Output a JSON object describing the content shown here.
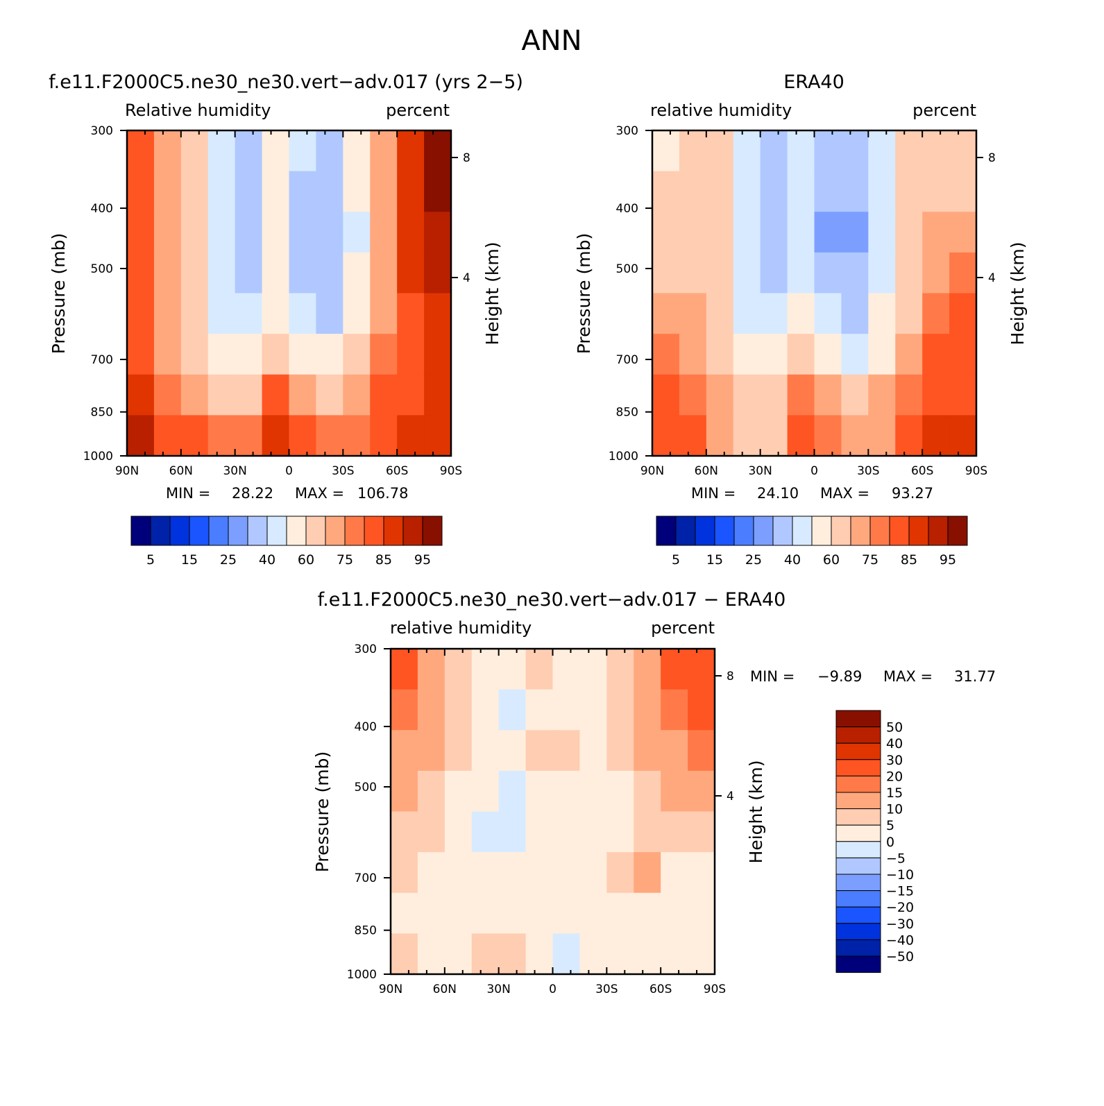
{
  "figure": {
    "title": "ANN",
    "colors": {
      "rh_scale": [
        "#00007a",
        "#0022a8",
        "#0033dd",
        "#1a55ff",
        "#4a7dff",
        "#7c9fff",
        "#b0c8ff",
        "#d8eaff",
        "#ffeedd",
        "#ffcdb2",
        "#ffa87e",
        "#ff7a48",
        "#ff5522",
        "#e03500",
        "#b82000",
        "#881000"
      ],
      "diff_scale": [
        "#00007a",
        "#0022a8",
        "#0033dd",
        "#1a55ff",
        "#4a7dff",
        "#7c9fff",
        "#b0c8ff",
        "#d8eaff",
        "#ffeedd",
        "#ffcdb2",
        "#ffa87e",
        "#ff7a48",
        "#ff5522",
        "#e03500",
        "#b82000",
        "#881000"
      ]
    }
  },
  "chart_data": [
    {
      "type": "heatmap",
      "title": "f.e11.F2000C5.ne30_ne30.vert−adv.017 (yrs 2−5)",
      "subtitle_left": "Relative humidity",
      "subtitle_right": "percent",
      "ylabel": "Pressure (mb)",
      "y2label": "Height (km)",
      "x": [
        "90N",
        "60N",
        "30N",
        "0",
        "30S",
        "60S",
        "90S"
      ],
      "x_values": [
        90,
        60,
        30,
        0,
        -30,
        -60,
        -90
      ],
      "y": [
        "300",
        "400",
        "500",
        "700",
        "850",
        "1000"
      ],
      "y_values": [
        300,
        400,
        500,
        700,
        850,
        1000
      ],
      "y2_ticks": [
        "8",
        "4"
      ],
      "min_label": "MIN =",
      "min": "28.22",
      "max_label": "MAX =",
      "max": "106.78",
      "colorbar_ticks": [
        "5",
        "15",
        "25",
        "40",
        "60",
        "75",
        "85",
        "95"
      ],
      "colorbar_levels": [
        5,
        10,
        15,
        20,
        25,
        30,
        40,
        50,
        60,
        70,
        75,
        80,
        85,
        90,
        95
      ],
      "z": [
        [
          82,
          72,
          62,
          44,
          38,
          52,
          40,
          38,
          52,
          72,
          88,
          98
        ],
        [
          82,
          74,
          62,
          42,
          38,
          50,
          36,
          34,
          50,
          72,
          88,
          96
        ],
        [
          80,
          74,
          62,
          42,
          36,
          50,
          36,
          32,
          48,
          72,
          86,
          92
        ],
        [
          80,
          72,
          62,
          44,
          38,
          54,
          38,
          34,
          50,
          72,
          86,
          90
        ],
        [
          80,
          72,
          62,
          48,
          42,
          58,
          42,
          38,
          52,
          74,
          84,
          88
        ],
        [
          82,
          74,
          66,
          56,
          52,
          66,
          54,
          50,
          62,
          78,
          82,
          86
        ],
        [
          86,
          78,
          72,
          68,
          66,
          80,
          72,
          68,
          70,
          80,
          84,
          86
        ],
        [
          92,
          84,
          80,
          76,
          76,
          88,
          80,
          76,
          78,
          84,
          86,
          88
        ]
      ]
    },
    {
      "type": "heatmap",
      "title": "ERA40",
      "subtitle_left": "relative humidity",
      "subtitle_right": "percent",
      "ylabel": "Pressure (mb)",
      "y2label": "Height (km)",
      "x": [
        "90N",
        "60N",
        "30N",
        "0",
        "30S",
        "60S",
        "90S"
      ],
      "x_values": [
        90,
        60,
        30,
        0,
        -30,
        -60,
        -90
      ],
      "y": [
        "300",
        "400",
        "500",
        "700",
        "850",
        "1000"
      ],
      "y_values": [
        300,
        400,
        500,
        700,
        850,
        1000
      ],
      "y2_ticks": [
        "8",
        "4"
      ],
      "min_label": "MIN =",
      "min": "24.10",
      "max_label": "MAX =",
      "max": "93.27",
      "colorbar_ticks": [
        "5",
        "15",
        "25",
        "40",
        "60",
        "75",
        "85",
        "95"
      ],
      "colorbar_levels": [
        5,
        10,
        15,
        20,
        25,
        30,
        40,
        50,
        60,
        70,
        75,
        80,
        85,
        90,
        95
      ],
      "z": [
        [
          58,
          62,
          60,
          42,
          38,
          42,
          34,
          34,
          44,
          60,
          62,
          62
        ],
        [
          62,
          66,
          62,
          42,
          36,
          42,
          30,
          30,
          42,
          62,
          66,
          66
        ],
        [
          64,
          68,
          62,
          42,
          36,
          44,
          26,
          28,
          42,
          64,
          70,
          72
        ],
        [
          66,
          68,
          62,
          44,
          38,
          48,
          34,
          34,
          46,
          64,
          72,
          76
        ],
        [
          70,
          70,
          64,
          48,
          42,
          54,
          40,
          38,
          50,
          66,
          76,
          80
        ],
        [
          76,
          72,
          66,
          56,
          52,
          62,
          50,
          48,
          58,
          70,
          80,
          82
        ],
        [
          82,
          78,
          72,
          66,
          64,
          78,
          70,
          64,
          70,
          78,
          84,
          84
        ],
        [
          84,
          80,
          74,
          68,
          66,
          82,
          76,
          70,
          74,
          82,
          86,
          86
        ]
      ]
    },
    {
      "type": "heatmap",
      "title": "f.e11.F2000C5.ne30_ne30.vert−adv.017 − ERA40",
      "subtitle_left": "relative humidity",
      "subtitle_right": "percent",
      "ylabel": "Pressure (mb)",
      "y2label": "Height (km)",
      "x": [
        "90N",
        "60N",
        "30N",
        "0",
        "30S",
        "60S",
        "90S"
      ],
      "x_values": [
        90,
        60,
        30,
        0,
        -30,
        -60,
        -90
      ],
      "y": [
        "300",
        "400",
        "500",
        "700",
        "850",
        "1000"
      ],
      "y_values": [
        300,
        400,
        500,
        700,
        850,
        1000
      ],
      "y2_ticks": [
        "8",
        "4"
      ],
      "min_label": "MIN =",
      "min": "−9.89",
      "max_label": "MAX =",
      "max": "31.77",
      "colorbar_ticks": [
        "50",
        "40",
        "30",
        "20",
        "15",
        "10",
        "5",
        "0",
        "−5",
        "−10",
        "−15",
        "−20",
        "−30",
        "−40",
        "−50"
      ],
      "colorbar_levels": [
        -50,
        -40,
        -30,
        -20,
        -15,
        -10,
        -5,
        0,
        5,
        10,
        15,
        20,
        30,
        40,
        50
      ],
      "z": [
        [
          22,
          12,
          8,
          4,
          2,
          6,
          2,
          4,
          8,
          12,
          20,
          28
        ],
        [
          18,
          10,
          6,
          4,
          -2,
          4,
          4,
          4,
          6,
          10,
          18,
          24
        ],
        [
          14,
          10,
          6,
          2,
          2,
          6,
          6,
          4,
          6,
          10,
          14,
          18
        ],
        [
          12,
          8,
          4,
          2,
          -2,
          2,
          4,
          2,
          4,
          8,
          12,
          14
        ],
        [
          8,
          6,
          4,
          -2,
          -2,
          2,
          2,
          2,
          4,
          8,
          8,
          8
        ],
        [
          6,
          4,
          2,
          2,
          2,
          4,
          4,
          4,
          6,
          10,
          4,
          2
        ],
        [
          4,
          2,
          2,
          2,
          4,
          4,
          2,
          4,
          2,
          4,
          4,
          4
        ],
        [
          6,
          4,
          4,
          6,
          6,
          4,
          -2,
          2,
          4,
          4,
          4,
          4
        ]
      ]
    }
  ]
}
